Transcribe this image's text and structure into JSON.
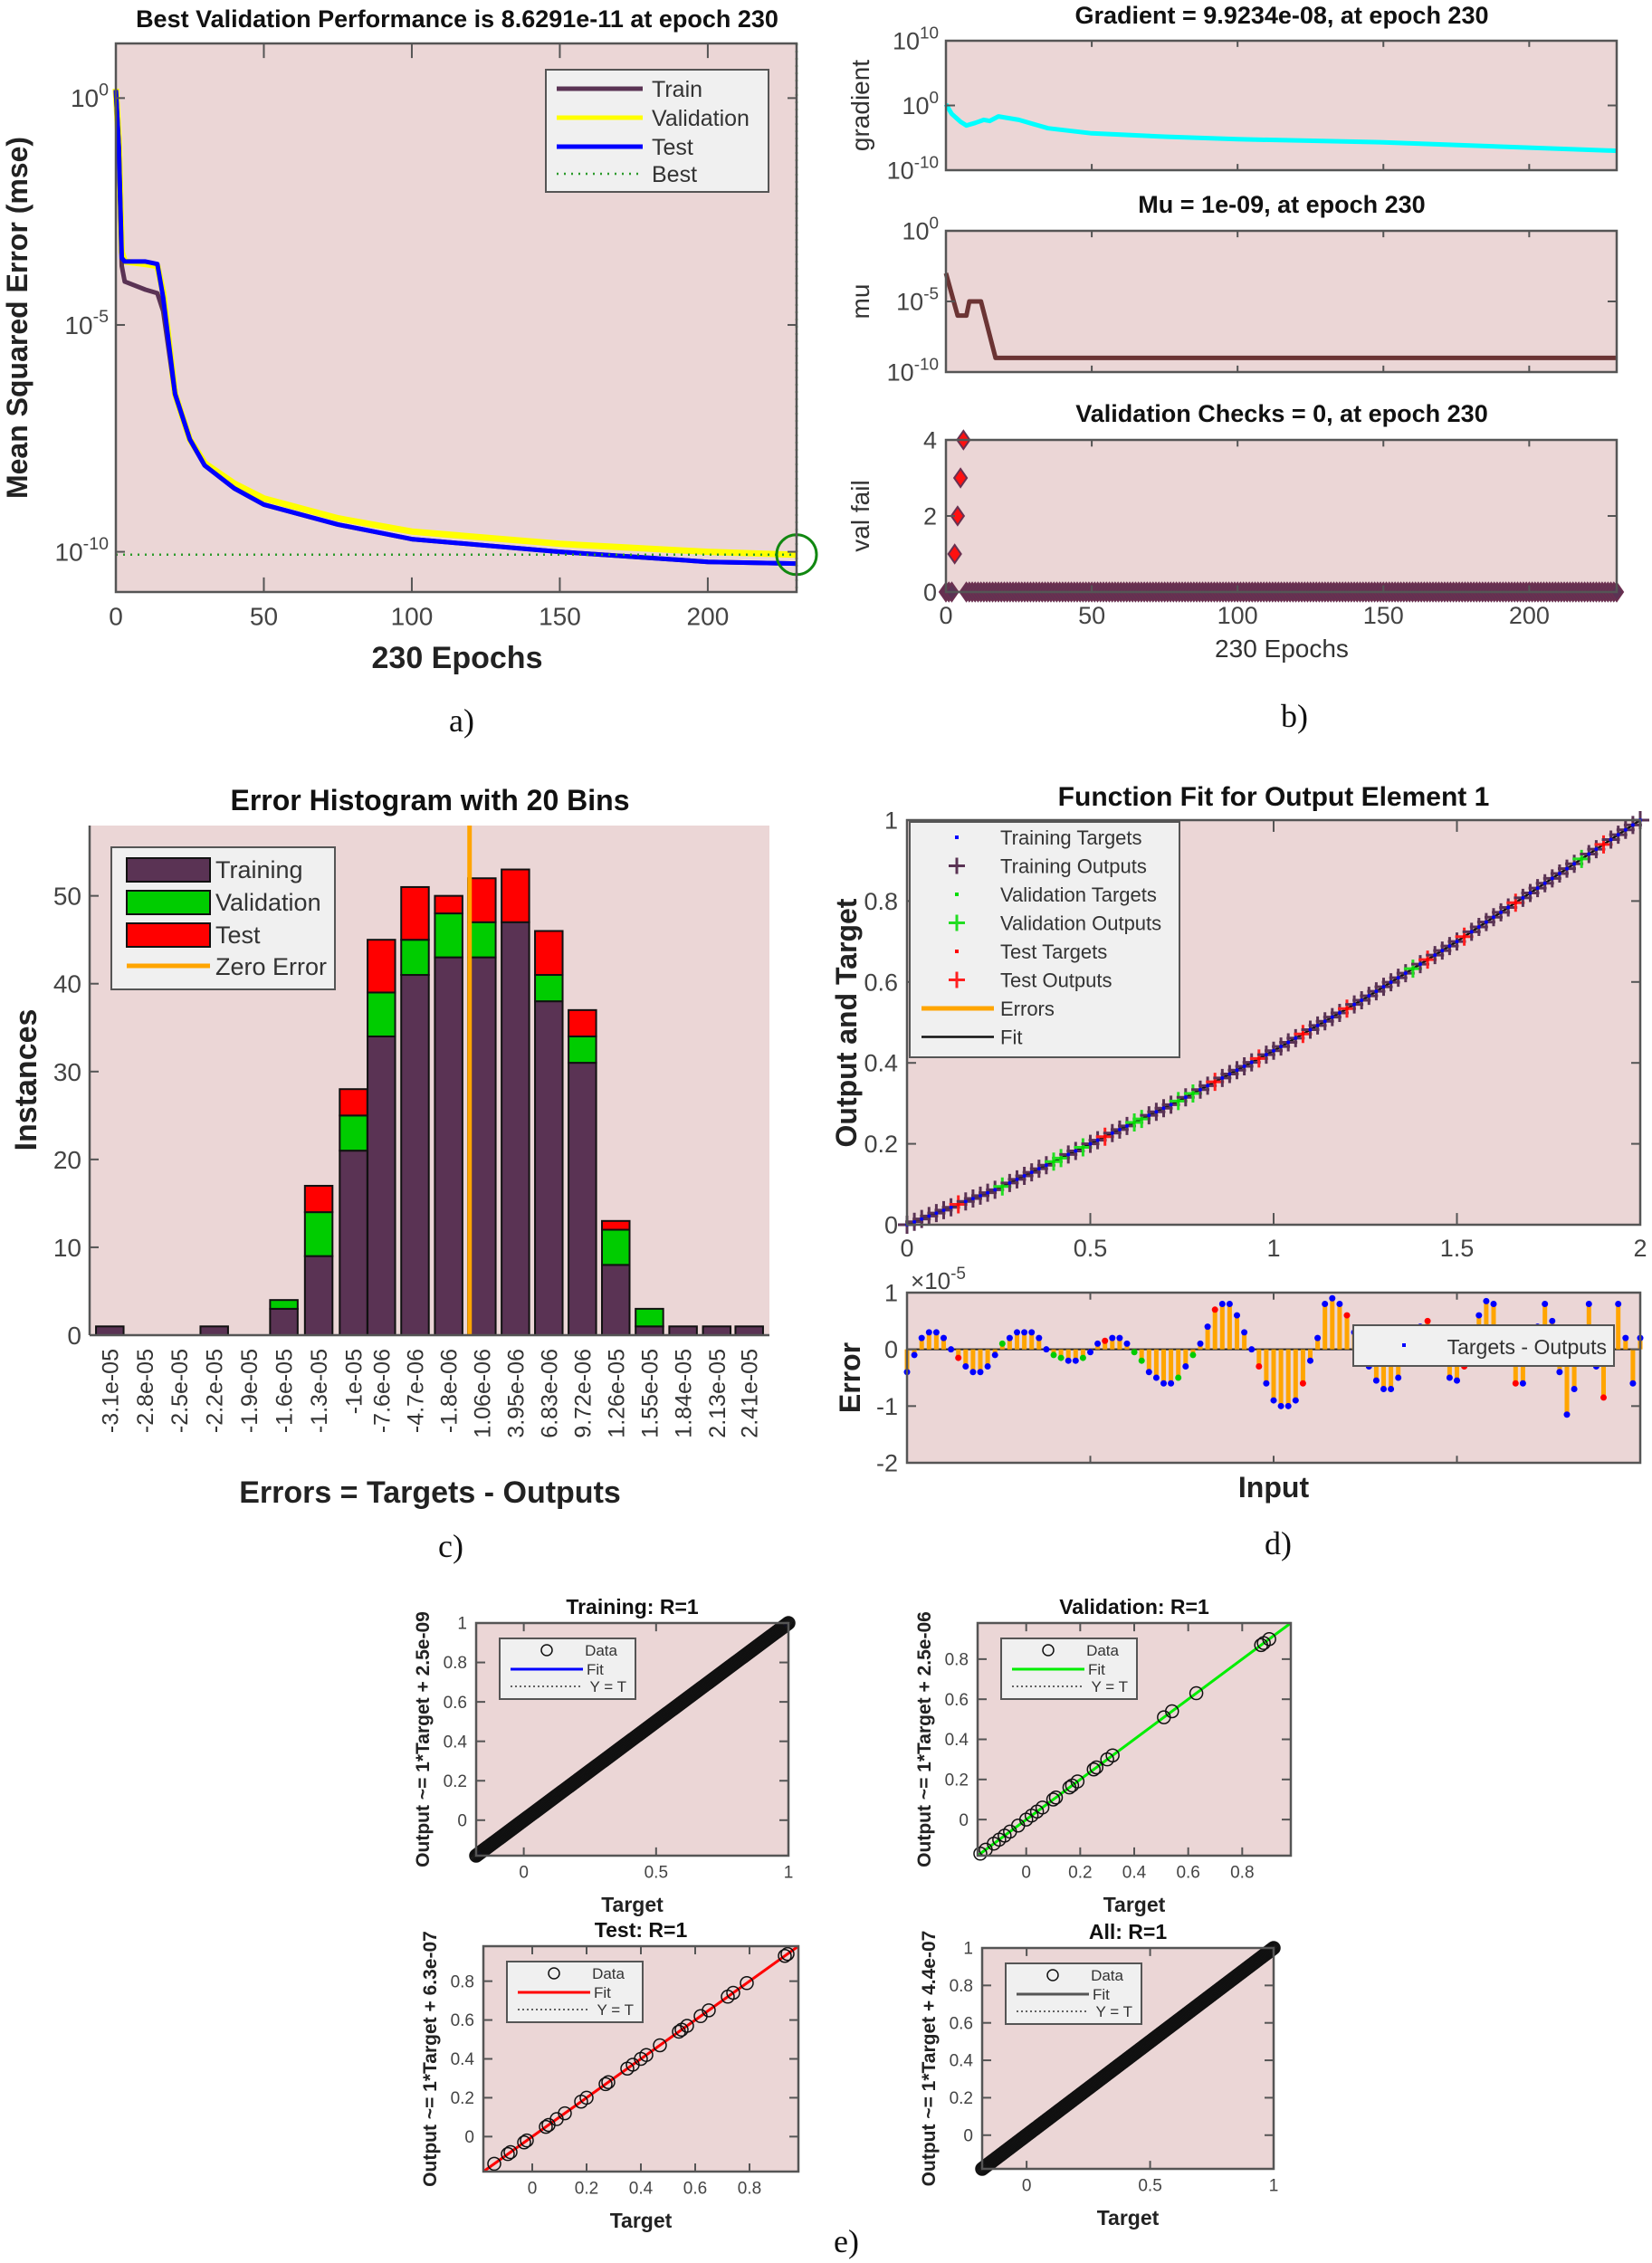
{
  "panel_labels": [
    "a)",
    "b)",
    "c)",
    "d)",
    "e)"
  ],
  "colors": {
    "axes_background": "#ebd6d6",
    "train": "#5a3354",
    "validation": "#ffff00",
    "test": "#0000ff",
    "best": "#2a9a2a",
    "gradient": "#00ffff",
    "mu": "#6b3434",
    "hist_validation": "#00cc00",
    "hist_test": "#ff0000",
    "zero_error": "#ffa500"
  },
  "chart_data": [
    {
      "type": "line",
      "title": "Best Validation Performance is 8.6291e-11 at epoch 230",
      "xlabel": "230 Epochs",
      "ylabel": "Mean Squared Error  (mse)",
      "yscale": "log",
      "xlim": [
        0,
        230
      ],
      "ylim": [
        1.3e-11,
        16
      ],
      "xticks": [
        0,
        50,
        100,
        150,
        200
      ],
      "yticks": [
        {
          "value": 1,
          "base": "10",
          "exp": "0"
        },
        {
          "value": 1e-05,
          "base": "10",
          "exp": "-5"
        },
        {
          "value": 1e-10,
          "base": "10",
          "exp": "-10"
        }
      ],
      "legend": "top-right",
      "series": [
        {
          "name": "Validation",
          "color": "#ffff00",
          "points": [
            [
              0,
              1.6
            ],
            [
              1,
              0.1
            ],
            [
              2,
              0.0004
            ],
            [
              3,
              0.00025
            ],
            [
              10,
              0.00022
            ],
            [
              14,
              0.0002
            ],
            [
              16,
              5e-05
            ],
            [
              20,
              3e-07
            ],
            [
              25,
              3e-08
            ],
            [
              30,
              9e-09
            ],
            [
              40,
              3.2e-09
            ],
            [
              50,
              1.5e-09
            ],
            [
              75,
              5.5e-10
            ],
            [
              100,
              2.8e-10
            ],
            [
              150,
              1.5e-10
            ],
            [
              200,
              1e-10
            ],
            [
              230,
              8.6e-11
            ]
          ]
        },
        {
          "name": "Train",
          "color": "#5a3354",
          "points": [
            [
              0,
              1.5
            ],
            [
              1,
              0.08
            ],
            [
              2,
              0.0002
            ],
            [
              3,
              9e-05
            ],
            [
              10,
              6e-05
            ],
            [
              14,
              5e-05
            ],
            [
              16,
              2e-05
            ],
            [
              20,
              3e-07
            ],
            [
              25,
              3e-08
            ],
            [
              30,
              8e-09
            ],
            [
              40,
              2.5e-09
            ],
            [
              50,
              1.1e-09
            ],
            [
              75,
              4e-10
            ],
            [
              100,
              1.9e-10
            ],
            [
              150,
              1e-10
            ],
            [
              200,
              6e-11
            ],
            [
              230,
              5.5e-11
            ]
          ]
        },
        {
          "name": "Test",
          "color": "#0000ff",
          "points": [
            [
              0,
              1.5
            ],
            [
              1,
              0.08
            ],
            [
              2,
              0.0003
            ],
            [
              3,
              0.00025
            ],
            [
              10,
              0.00025
            ],
            [
              14,
              0.00022
            ],
            [
              16,
              4e-05
            ],
            [
              20,
              3e-07
            ],
            [
              25,
              3e-08
            ],
            [
              30,
              8e-09
            ],
            [
              40,
              2.5e-09
            ],
            [
              50,
              1.1e-09
            ],
            [
              75,
              4e-10
            ],
            [
              100,
              1.9e-10
            ],
            [
              150,
              1e-10
            ],
            [
              200,
              6e-11
            ],
            [
              230,
              5.5e-11
            ]
          ]
        }
      ],
      "best": {
        "name": "Best",
        "epoch": 230,
        "value": 8.6291e-11,
        "color": "#2a9a2a"
      }
    },
    {
      "type": "line",
      "title": "Gradient = 9.9234e-08, at epoch 230",
      "ylabel": "gradient",
      "yscale": "log",
      "xlim": [
        0,
        230
      ],
      "ylim": [
        1e-10,
        10000000000.0
      ],
      "xticks": [
        0,
        50,
        100,
        150,
        200
      ],
      "yticks": [
        {
          "value": 10000000000.0,
          "base": "10",
          "exp": "10"
        },
        {
          "value": 1,
          "base": "10",
          "exp": "0"
        },
        {
          "value": 1e-10,
          "base": "10",
          "exp": "-10"
        }
      ],
      "series": [
        {
          "color": "#00ffff",
          "points": [
            [
              0,
              1.5
            ],
            [
              2,
              0.05
            ],
            [
              5,
              0.003
            ],
            [
              7,
              0.0008
            ],
            [
              10,
              0.002
            ],
            [
              13,
              0.006
            ],
            [
              15,
              0.004
            ],
            [
              18,
              0.02
            ],
            [
              25,
              0.006
            ],
            [
              35,
              0.0003
            ],
            [
              50,
              5e-05
            ],
            [
              75,
              1.5e-05
            ],
            [
              100,
              6e-06
            ],
            [
              150,
              2e-06
            ],
            [
              200,
              3e-07
            ],
            [
              230,
              9.9e-08
            ]
          ]
        }
      ]
    },
    {
      "type": "line",
      "title": "Mu = 1e-09, at epoch 230",
      "ylabel": "mu",
      "yscale": "log",
      "xlim": [
        0,
        230
      ],
      "ylim": [
        1e-10,
        1
      ],
      "xticks": [
        0,
        50,
        100,
        150,
        200
      ],
      "yticks": [
        {
          "value": 1,
          "base": "10",
          "exp": "0"
        },
        {
          "value": 1e-05,
          "base": "10",
          "exp": "-5"
        },
        {
          "value": 1e-10,
          "base": "10",
          "exp": "-10"
        }
      ],
      "series": [
        {
          "color": "#6b3434",
          "points": [
            [
              0,
              0.001
            ],
            [
              4,
              1e-06
            ],
            [
              7,
              1e-06
            ],
            [
              8,
              1e-05
            ],
            [
              12,
              1e-05
            ],
            [
              17,
              1e-09
            ],
            [
              230,
              1e-09
            ]
          ]
        }
      ]
    },
    {
      "type": "scatter",
      "title": "Validation Checks = 0, at epoch 230",
      "xlabel": "230 Epochs",
      "ylabel": "val fail",
      "xlim": [
        0,
        230
      ],
      "ylim": [
        0,
        4
      ],
      "xticks": [
        0,
        50,
        100,
        150,
        200
      ],
      "yticks": [
        0,
        2,
        4
      ],
      "epochs": [
        0,
        230
      ],
      "nonzero": [
        [
          3,
          1
        ],
        [
          4,
          2
        ],
        [
          5,
          3
        ],
        [
          6,
          4
        ]
      ]
    },
    {
      "type": "bar",
      "stacked": true,
      "title": "Error Histogram with 20 Bins",
      "xlabel": "Errors = Targets - Outputs",
      "ylabel": "Instances",
      "ylim": [
        0,
        58
      ],
      "yticks": [
        0,
        10,
        20,
        30,
        40,
        50
      ],
      "categories": [
        "-3.1e-05",
        "-2.8e-05",
        "-2.5e-05",
        "-2.2e-05",
        "-1.9e-05",
        "-1.6e-05",
        "-1.3e-05",
        "-1e-05",
        "-7.6e-06",
        "-4.7e-06",
        "-1.8e-06",
        "1.06e-06",
        "3.95e-06",
        "6.83e-06",
        "9.72e-06",
        "1.26e-05",
        "1.55e-05",
        "1.84e-05",
        "2.13e-05",
        "2.41e-05"
      ],
      "bin_centers": [
        -3.1e-05,
        -2.8e-05,
        -2.5e-05,
        -2.2e-05,
        -1.9e-05,
        -1.6e-05,
        -1.3e-05,
        -1e-05,
        -7.6e-06,
        -4.7e-06,
        -1.8e-06,
        1.06e-06,
        3.95e-06,
        6.83e-06,
        9.72e-06,
        1.26e-05,
        1.55e-05,
        1.84e-05,
        2.13e-05,
        2.41e-05
      ],
      "series": [
        {
          "name": "Training",
          "color": "#5a3354",
          "values": [
            1,
            0,
            0,
            1,
            0,
            3,
            9,
            21,
            34,
            41,
            43,
            43,
            47,
            38,
            31,
            8,
            1,
            1,
            1,
            1
          ]
        },
        {
          "name": "Validation",
          "color": "#00cc00",
          "values": [
            0,
            0,
            0,
            0,
            0,
            1,
            5,
            4,
            5,
            4,
            5,
            4,
            0,
            3,
            3,
            4,
            2,
            0,
            0,
            0
          ]
        },
        {
          "name": "Test",
          "color": "#ff0000",
          "values": [
            0,
            0,
            0,
            0,
            0,
            0,
            3,
            3,
            6,
            6,
            2,
            5,
            6,
            5,
            3,
            1,
            0,
            0,
            0,
            0
          ]
        }
      ],
      "zero_error": {
        "name": "Zero Error",
        "value": 0,
        "color": "#ffa500"
      },
      "legend": "top-left"
    },
    {
      "type": "line",
      "title": "Function Fit for Output Element 1",
      "ylabel": "Output and Target",
      "xlim": [
        0,
        2
      ],
      "ylim": [
        0,
        1
      ],
      "xticks": [
        0,
        0.5,
        1,
        1.5,
        2
      ],
      "yticks": [
        0,
        0.2,
        0.4,
        0.6,
        0.8,
        1
      ],
      "fit_curve": {
        "x": [
          0,
          0.25,
          0.5,
          0.75,
          1,
          1.25,
          1.5,
          1.75,
          2
        ],
        "y": [
          0,
          0.09,
          0.2,
          0.31,
          0.43,
          0.56,
          0.7,
          0.85,
          1
        ]
      },
      "input_step": 0.02,
      "validation_inputs": [
        0.26,
        0.4,
        0.42,
        0.48,
        0.62,
        0.64,
        0.74,
        0.78,
        1.38,
        1.84
      ],
      "test_inputs": [
        0.14,
        0.54,
        0.84,
        0.96,
        1.08,
        1.2,
        1.42,
        1.52,
        1.66,
        1.9
      ],
      "legend_entries": [
        "Training Targets",
        "Training Outputs",
        "Validation Targets",
        "Validation Outputs",
        "Test Targets",
        "Test Outputs",
        "Errors",
        "Fit"
      ],
      "legend": "top-left"
    },
    {
      "type": "bar",
      "xlabel": "Input",
      "ylabel": "Error",
      "xlim": [
        0,
        2
      ],
      "ylim": [
        -2,
        1
      ],
      "yticks": [
        -2,
        -1,
        0,
        1
      ],
      "xticks": [
        0,
        0.5,
        1,
        1.5,
        2
      ],
      "y_multiplier": {
        "symbol": "×",
        "base": "10",
        "exp": "-5"
      },
      "input_step": 0.02,
      "values": [
        -0.4,
        -0.1,
        0.2,
        0.3,
        0.3,
        0.2,
        0.0,
        -0.15,
        -0.3,
        -0.4,
        -0.4,
        -0.3,
        -0.1,
        0.1,
        0.2,
        0.3,
        0.3,
        0.3,
        0.2,
        0.0,
        -0.1,
        -0.15,
        -0.2,
        -0.2,
        -0.15,
        -0.05,
        0.1,
        0.15,
        0.2,
        0.2,
        0.1,
        -0.05,
        -0.2,
        -0.4,
        -0.5,
        -0.6,
        -0.6,
        -0.5,
        -0.3,
        -0.1,
        0.1,
        0.4,
        0.7,
        0.8,
        0.8,
        0.6,
        0.3,
        0.0,
        -0.3,
        -0.6,
        -0.9,
        -1.0,
        -1.0,
        -0.9,
        -0.6,
        -0.2,
        0.2,
        0.8,
        0.9,
        0.8,
        0.6,
        0.3,
        0.0,
        -0.3,
        -0.55,
        -0.7,
        -0.7,
        -0.5,
        -0.25,
        0.1,
        0.4,
        0.5,
        0.2,
        -0.2,
        -0.5,
        -0.55,
        -0.3,
        0.2,
        0.6,
        0.85,
        0.8,
        0.3,
        -0.2,
        -0.6,
        -0.6,
        -0.2,
        0.4,
        0.8,
        0.5,
        -0.4,
        -1.15,
        -0.7,
        0.2,
        0.8,
        -0.3,
        -0.85,
        0.3,
        0.8,
        0.2,
        -0.6,
        0.2
      ],
      "legend_entry": "Targets - Outputs",
      "legend": "top-right"
    },
    {
      "type": "scatter",
      "title": "Training: R=1",
      "xlabel": "Target",
      "ylabel": "Output ~= 1*Target + 2.5e-09",
      "xlim": [
        -0.18,
        1
      ],
      "ylim": [
        -0.18,
        1
      ],
      "xticks": [
        0,
        0.5,
        1
      ],
      "yticks": [
        0,
        0.2,
        0.4,
        0.6,
        0.8,
        1
      ],
      "fit": {
        "slope": 1,
        "intercept": 2.5e-09,
        "color": "#0000ff"
      },
      "target_range": [
        -0.18,
        1
      ],
      "legend_entries": [
        "Data",
        "Fit",
        "Y = T"
      ]
    },
    {
      "type": "scatter",
      "title": "Validation: R=1",
      "xlabel": "Target",
      "ylabel": "Output ~= 1*Target + 2.5e-06",
      "xlim": [
        -0.18,
        0.98
      ],
      "ylim": [
        -0.18,
        0.98
      ],
      "xticks": [
        0,
        0.2,
        0.4,
        0.6,
        0.8
      ],
      "yticks": [
        0,
        0.2,
        0.4,
        0.6,
        0.8
      ],
      "fit": {
        "slope": 1,
        "intercept": 2.5e-06,
        "color": "#00ee00"
      },
      "targets": [
        -0.17,
        -0.15,
        -0.12,
        -0.1,
        -0.08,
        -0.06,
        -0.03,
        0,
        0.02,
        0.04,
        0.06,
        0.1,
        0.11,
        0.16,
        0.17,
        0.19,
        0.25,
        0.26,
        0.3,
        0.32,
        0.51,
        0.54,
        0.63,
        0.87,
        0.88,
        0.9
      ],
      "legend_entries": [
        "Data",
        "Fit",
        "Y = T"
      ]
    },
    {
      "type": "scatter",
      "title": "Test: R=1",
      "xlabel": "Target",
      "ylabel": "Output ~= 1*Target + 6.3e-07",
      "xlim": [
        -0.18,
        0.98
      ],
      "ylim": [
        -0.18,
        0.98
      ],
      "xticks": [
        0,
        0.2,
        0.4,
        0.6,
        0.8
      ],
      "yticks": [
        0,
        0.2,
        0.4,
        0.6,
        0.8
      ],
      "fit": {
        "slope": 1,
        "intercept": 6.3e-07,
        "color": "#ff0000"
      },
      "targets": [
        -0.14,
        -0.09,
        -0.08,
        -0.03,
        -0.02,
        0.05,
        0.06,
        0.09,
        0.12,
        0.18,
        0.2,
        0.27,
        0.28,
        0.35,
        0.37,
        0.4,
        0.42,
        0.47,
        0.54,
        0.55,
        0.57,
        0.62,
        0.65,
        0.72,
        0.74,
        0.79,
        0.93,
        0.94
      ],
      "legend_entries": [
        "Data",
        "Fit",
        "Y = T"
      ]
    },
    {
      "type": "scatter",
      "title": "All: R=1",
      "xlabel": "Target",
      "ylabel": "Output ~= 1*Target + 4.4e-07",
      "xlim": [
        -0.18,
        1
      ],
      "ylim": [
        -0.18,
        1
      ],
      "xticks": [
        0,
        0.5,
        1
      ],
      "yticks": [
        0,
        0.2,
        0.4,
        0.6,
        0.8,
        1
      ],
      "fit": {
        "slope": 1,
        "intercept": 4.4e-07,
        "color": "#555555"
      },
      "target_range": [
        -0.18,
        1
      ],
      "legend_entries": [
        "Data",
        "Fit",
        "Y = T"
      ]
    }
  ]
}
